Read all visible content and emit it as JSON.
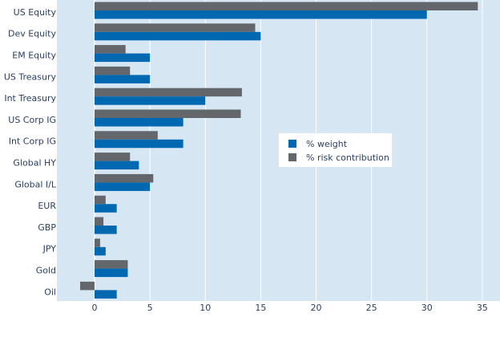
{
  "chart_data": {
    "type": "bar",
    "orientation": "horizontal",
    "title": "",
    "xlabel": "",
    "ylabel": "",
    "categories": [
      "US Equity",
      "Dev Equity",
      "EM Equity",
      "US Treasury",
      "Int Treasury",
      "US Corp IG",
      "Int Corp IG",
      "Global HY",
      "Global I/L",
      "EUR",
      "GBP",
      "JPY",
      "Gold",
      "Oil"
    ],
    "series": [
      {
        "name": "% weight",
        "color": "#0067b1",
        "values": [
          30,
          15,
          5,
          5,
          10,
          8,
          8,
          4,
          5,
          2,
          2,
          1,
          3,
          2
        ]
      },
      {
        "name": "% risk contribution",
        "color": "#63666a",
        "values": [
          34.6,
          14.5,
          2.8,
          3.2,
          13.3,
          13.2,
          5.7,
          3.2,
          5.3,
          1.0,
          0.8,
          0.5,
          3.0,
          -1.3
        ]
      }
    ],
    "xlim": [
      -3.4,
      36.6
    ],
    "xticks": [
      0,
      5,
      10,
      15,
      20,
      25,
      30,
      35
    ],
    "grid": true,
    "legend_position": "center-right",
    "plot_background": "#d6e6f3"
  }
}
